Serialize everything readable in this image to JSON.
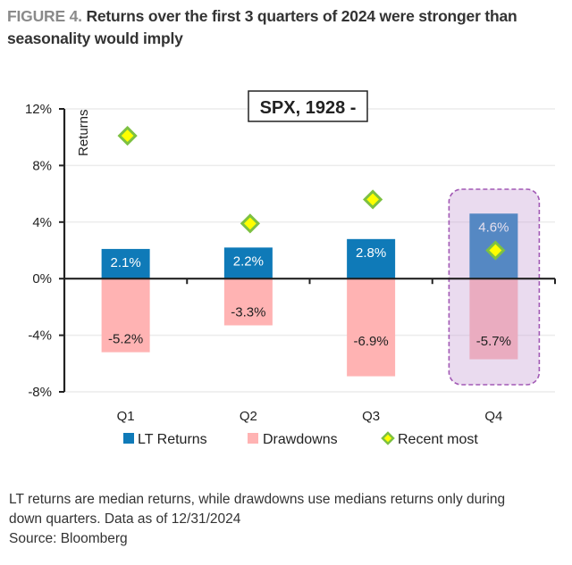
{
  "header": {
    "figure_label": "FIGURE 4.",
    "title": "Returns over the first 3 quarters of 2024 were stronger than seasonality would imply"
  },
  "chart_data": {
    "type": "bar",
    "title": "Returns over the first 3 quarters of 2024 were stronger than seasonality would imply",
    "annotation": "SPX, 1928 -",
    "xlabel": "",
    "ylabel": "Returns",
    "ylim": [
      -8,
      12
    ],
    "yticks": [
      12,
      8,
      4,
      0,
      -4,
      -8
    ],
    "ytick_labels": [
      "12%",
      "8%",
      "4%",
      "0%",
      "-4%",
      "-8%"
    ],
    "grid": true,
    "categories": [
      "Q1",
      "Q2",
      "Q3",
      "Q4"
    ],
    "series": [
      {
        "name": "LT Returns",
        "kind": "bar",
        "color": "#0f7ab8",
        "values": [
          2.1,
          2.2,
          2.8,
          4.6
        ],
        "labels": [
          "2.1%",
          "2.2%",
          "2.8%",
          "4.6%"
        ]
      },
      {
        "name": "Drawdowns",
        "kind": "bar",
        "color": "#ffb3b3",
        "values": [
          -5.2,
          -3.3,
          -6.9,
          -5.7
        ],
        "labels": [
          "-5.2%",
          "-3.3%",
          "-6.9%",
          "-5.7%"
        ]
      },
      {
        "name": "Recent most",
        "kind": "marker",
        "marker": "diamond",
        "color": "#ffff00",
        "edge_color": "#7dc142",
        "values": [
          10.1,
          3.9,
          5.6,
          2.0
        ]
      }
    ],
    "highlight": {
      "category": "Q4",
      "color": "#c9a0d4",
      "border_color": "#a259b5",
      "style": "dashed"
    },
    "legend": {
      "position": "bottom",
      "entries": [
        "LT Returns",
        "Drawdowns",
        "Recent most"
      ]
    }
  },
  "notes": {
    "line1": "LT returns are median returns, while drawdowns use medians returns only during",
    "line2": "down quarters. Data as of 12/31/2024",
    "source": "Source: Bloomberg"
  }
}
